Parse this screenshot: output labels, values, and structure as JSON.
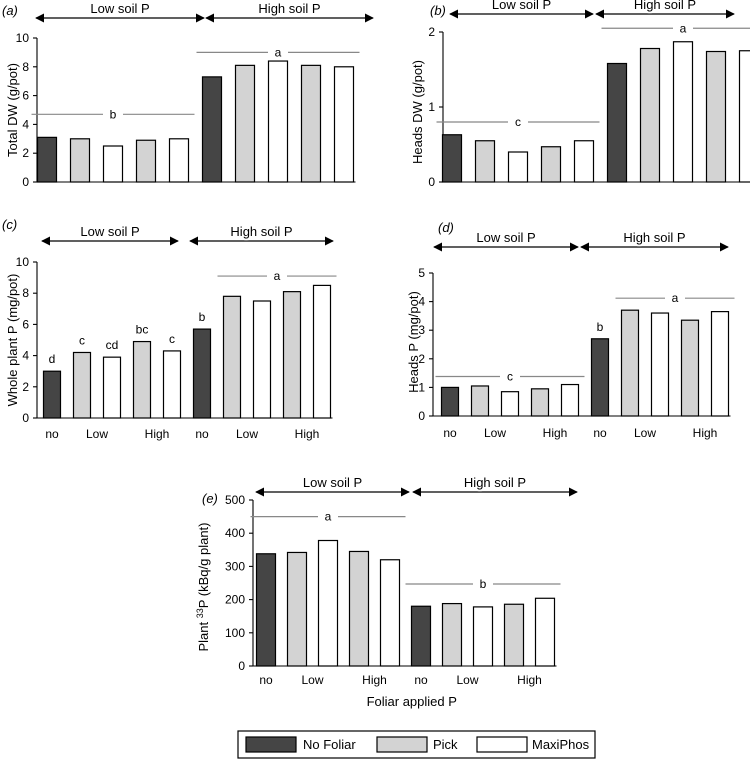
{
  "figure": {
    "bar_colors": {
      "No Foliar": "#454545",
      "Pick": "#d3d3d3",
      "MaxiPhos": "#ffffff"
    }
  },
  "legend": {
    "items": [
      {
        "label": "No Foliar",
        "color": "#454545"
      },
      {
        "label": "Pick",
        "color": "#d3d3d3"
      },
      {
        "label": "MaxiPhos",
        "color": "#ffffff"
      }
    ]
  },
  "chart_data": [
    {
      "panel": "(a)",
      "type": "bar",
      "ylabel": "Total DW (g/pot)",
      "ylim": [
        0,
        10
      ],
      "yticks": [
        "0",
        "2",
        "4",
        "6",
        "8",
        "10"
      ],
      "groups": [
        {
          "label": "Low soil P",
          "bars": [
            {
              "series": "No Foliar",
              "value": 3.1
            },
            {
              "series": "Pick",
              "value": 3.0
            },
            {
              "series": "MaxiPhos",
              "value": 2.5
            },
            {
              "series": "Pick",
              "value": 2.9
            },
            {
              "series": "MaxiPhos",
              "value": 3.0
            }
          ],
          "sig_line": {
            "label": "b",
            "y": 4.7
          }
        },
        {
          "label": "High soil P",
          "bars": [
            {
              "series": "No Foliar",
              "value": 7.3
            },
            {
              "series": "Pick",
              "value": 8.1
            },
            {
              "series": "MaxiPhos",
              "value": 8.4
            },
            {
              "series": "Pick",
              "value": 8.1
            },
            {
              "series": "MaxiPhos",
              "value": 8.0
            }
          ],
          "sig_line": {
            "label": "a",
            "y": 9.0
          }
        }
      ],
      "xticks": []
    },
    {
      "panel": "(b)",
      "type": "bar",
      "ylabel": "Heads DW (g/pot)",
      "ylim": [
        0,
        2
      ],
      "yticks": [
        "0",
        "1",
        "2"
      ],
      "groups": [
        {
          "label": "Low soil P",
          "bars": [
            {
              "series": "No Foliar",
              "value": 0.63
            },
            {
              "series": "Pick",
              "value": 0.55
            },
            {
              "series": "MaxiPhos",
              "value": 0.4
            },
            {
              "series": "Pick",
              "value": 0.47
            },
            {
              "series": "MaxiPhos",
              "value": 0.55
            }
          ],
          "sig_line": {
            "label": "c",
            "y": 0.8
          }
        },
        {
          "label": "High soil P",
          "bars": [
            {
              "series": "No Foliar",
              "value": 1.58
            },
            {
              "series": "Pick",
              "value": 1.78
            },
            {
              "series": "MaxiPhos",
              "value": 1.87
            },
            {
              "series": "Pick",
              "value": 1.74
            },
            {
              "series": "MaxiPhos",
              "value": 1.75
            }
          ],
          "sig_line": {
            "label": "a",
            "y": 2.05
          }
        }
      ],
      "xticks": []
    },
    {
      "panel": "(c)",
      "type": "bar",
      "ylabel": "Whole plant P (mg/pot)",
      "ylim": [
        0,
        10
      ],
      "yticks": [
        "0",
        "2",
        "4",
        "6",
        "8",
        "10"
      ],
      "groups": [
        {
          "label": "Low soil P",
          "bars": [
            {
              "series": "No Foliar",
              "value": 3.0,
              "label": "d"
            },
            {
              "series": "Pick",
              "value": 4.2,
              "label": "c"
            },
            {
              "series": "MaxiPhos",
              "value": 3.9,
              "label": "cd"
            },
            {
              "series": "Pick",
              "value": 4.9,
              "label": "bc"
            },
            {
              "series": "MaxiPhos",
              "value": 4.3,
              "label": "c"
            }
          ]
        },
        {
          "label": "High soil P",
          "bars": [
            {
              "series": "No Foliar",
              "value": 5.7,
              "label": "b"
            },
            {
              "series": "Pick",
              "value": 7.8
            },
            {
              "series": "MaxiPhos",
              "value": 7.5
            },
            {
              "series": "Pick",
              "value": 8.1
            },
            {
              "series": "MaxiPhos",
              "value": 8.5
            }
          ],
          "sig_line": {
            "label": "a",
            "y": 9.1,
            "from_bar": 1
          }
        }
      ],
      "xticks": [
        {
          "label": "no",
          "at_bar": 0
        },
        {
          "label": "Low",
          "at_bar": 1.5
        },
        {
          "label": "High",
          "at_bar": 3.5
        },
        {
          "label": "no",
          "at_bar": 5
        },
        {
          "label": "Low",
          "at_bar": 6.5
        },
        {
          "label": "High",
          "at_bar": 8.5
        }
      ]
    },
    {
      "panel": "(d)",
      "type": "bar",
      "ylabel": "Heads P (mg/pot)",
      "ylim": [
        0,
        5
      ],
      "yticks": [
        "0",
        "1",
        "2",
        "3",
        "4",
        "5"
      ],
      "groups": [
        {
          "label": "Low soil P",
          "bars": [
            {
              "series": "No Foliar",
              "value": 1.0
            },
            {
              "series": "Pick",
              "value": 1.05
            },
            {
              "series": "MaxiPhos",
              "value": 0.85
            },
            {
              "series": "Pick",
              "value": 0.95
            },
            {
              "series": "MaxiPhos",
              "value": 1.1
            }
          ],
          "sig_line": {
            "label": "c",
            "y": 1.38
          }
        },
        {
          "label": "High soil P",
          "bars": [
            {
              "series": "No Foliar",
              "value": 2.7,
              "label": "b"
            },
            {
              "series": "Pick",
              "value": 3.7
            },
            {
              "series": "MaxiPhos",
              "value": 3.6
            },
            {
              "series": "Pick",
              "value": 3.35
            },
            {
              "series": "MaxiPhos",
              "value": 3.65
            }
          ],
          "sig_line": {
            "label": "a",
            "y": 4.12,
            "from_bar": 1
          }
        }
      ],
      "xticks": [
        {
          "label": "no",
          "at_bar": 0
        },
        {
          "label": "Low",
          "at_bar": 1.5
        },
        {
          "label": "High",
          "at_bar": 3.5
        },
        {
          "label": "no",
          "at_bar": 5
        },
        {
          "label": "Low",
          "at_bar": 6.5
        },
        {
          "label": "High",
          "at_bar": 8.5
        }
      ]
    },
    {
      "panel": "(e)",
      "type": "bar",
      "ylabel_main": "Plant ",
      "ylabel_sup": "33",
      "ylabel_rest": "P (kBq/g plant)",
      "xlabel": "Foliar applied P",
      "ylim": [
        0,
        500
      ],
      "yticks": [
        "0",
        "100",
        "200",
        "300",
        "400",
        "500"
      ],
      "groups": [
        {
          "label": "Low soil P",
          "bars": [
            {
              "series": "No Foliar",
              "value": 338
            },
            {
              "series": "Pick",
              "value": 342
            },
            {
              "series": "MaxiPhos",
              "value": 378
            },
            {
              "series": "Pick",
              "value": 345
            },
            {
              "series": "MaxiPhos",
              "value": 320
            }
          ],
          "sig_line": {
            "label": "a",
            "y": 450
          }
        },
        {
          "label": "High soil P",
          "bars": [
            {
              "series": "No Foliar",
              "value": 180
            },
            {
              "series": "Pick",
              "value": 188
            },
            {
              "series": "MaxiPhos",
              "value": 178
            },
            {
              "series": "Pick",
              "value": 186
            },
            {
              "series": "MaxiPhos",
              "value": 204
            }
          ],
          "sig_line": {
            "label": "b",
            "y": 247
          }
        }
      ],
      "xticks": [
        {
          "label": "no",
          "at_bar": 0
        },
        {
          "label": "Low",
          "at_bar": 1.5
        },
        {
          "label": "High",
          "at_bar": 3.5
        },
        {
          "label": "no",
          "at_bar": 5
        },
        {
          "label": "Low",
          "at_bar": 6.5
        },
        {
          "label": "High",
          "at_bar": 8.5
        }
      ]
    }
  ]
}
